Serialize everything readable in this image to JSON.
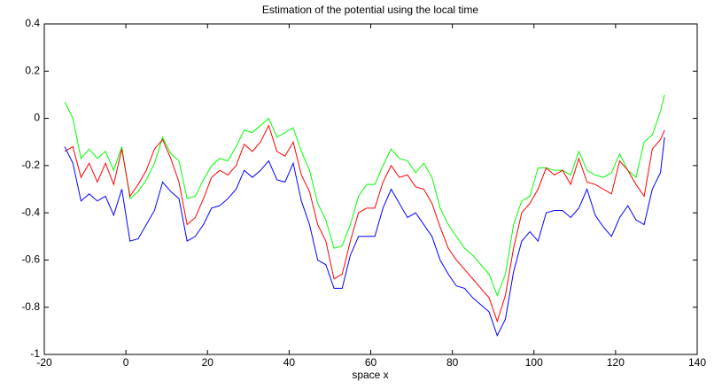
{
  "chart_data": {
    "type": "line",
    "title": "Estimation of the potential using the local time",
    "xlabel": "space x",
    "x": [
      -15,
      -13,
      -11,
      -9,
      -7,
      -5,
      -3,
      -1,
      1,
      3,
      5,
      7,
      9,
      11,
      13,
      15,
      17,
      19,
      21,
      23,
      25,
      27,
      29,
      31,
      33,
      35,
      37,
      39,
      41,
      43,
      45,
      47,
      49,
      51,
      53,
      55,
      57,
      59,
      61,
      63,
      65,
      67,
      69,
      71,
      73,
      75,
      77,
      79,
      81,
      83,
      85,
      87,
      89,
      91,
      93,
      95,
      97,
      99,
      101,
      103,
      105,
      107,
      109,
      111,
      113,
      115,
      117,
      119,
      121,
      123,
      125,
      127,
      129,
      131,
      132
    ],
    "series": [
      {
        "color": "#00ff00",
        "values": [
          0.07,
          0,
          -0.17,
          -0.13,
          -0.17,
          -0.14,
          -0.22,
          -0.12,
          -0.34,
          -0.31,
          -0.26,
          -0.19,
          -0.08,
          -0.15,
          -0.18,
          -0.34,
          -0.33,
          -0.26,
          -0.2,
          -0.17,
          -0.18,
          -0.12,
          -0.05,
          -0.06,
          -0.03,
          0,
          -0.08,
          -0.06,
          -0.04,
          -0.14,
          -0.22,
          -0.36,
          -0.43,
          -0.55,
          -0.54,
          -0.45,
          -0.33,
          -0.28,
          -0.28,
          -0.2,
          -0.13,
          -0.17,
          -0.18,
          -0.23,
          -0.19,
          -0.25,
          -0.38,
          -0.45,
          -0.5,
          -0.55,
          -0.58,
          -0.62,
          -0.66,
          -0.75,
          -0.66,
          -0.45,
          -0.35,
          -0.33,
          -0.21,
          -0.21,
          -0.22,
          -0.22,
          -0.24,
          -0.14,
          -0.22,
          -0.24,
          -0.25,
          -0.23,
          -0.15,
          -0.22,
          -0.25,
          -0.1,
          -0.07,
          0.03,
          0.1
        ]
      },
      {
        "color": "#ff0000",
        "values": [
          -0.14,
          -0.12,
          -0.25,
          -0.19,
          -0.27,
          -0.19,
          -0.28,
          -0.13,
          -0.33,
          -0.28,
          -0.22,
          -0.13,
          -0.09,
          -0.17,
          -0.27,
          -0.45,
          -0.42,
          -0.34,
          -0.25,
          -0.22,
          -0.24,
          -0.2,
          -0.11,
          -0.14,
          -0.1,
          -0.03,
          -0.14,
          -0.16,
          -0.1,
          -0.24,
          -0.31,
          -0.45,
          -0.52,
          -0.68,
          -0.66,
          -0.52,
          -0.4,
          -0.38,
          -0.38,
          -0.27,
          -0.2,
          -0.25,
          -0.24,
          -0.29,
          -0.3,
          -0.36,
          -0.46,
          -0.55,
          -0.6,
          -0.64,
          -0.68,
          -0.72,
          -0.76,
          -0.86,
          -0.75,
          -0.55,
          -0.4,
          -0.36,
          -0.3,
          -0.21,
          -0.24,
          -0.22,
          -0.28,
          -0.17,
          -0.27,
          -0.28,
          -0.3,
          -0.32,
          -0.18,
          -0.22,
          -0.28,
          -0.33,
          -0.13,
          -0.09,
          -0.05
        ]
      },
      {
        "color": "#0000ff",
        "values": [
          -0.12,
          -0.19,
          -0.35,
          -0.32,
          -0.35,
          -0.33,
          -0.41,
          -0.3,
          -0.52,
          -0.51,
          -0.45,
          -0.39,
          -0.27,
          -0.31,
          -0.34,
          -0.52,
          -0.5,
          -0.45,
          -0.38,
          -0.37,
          -0.34,
          -0.3,
          -0.22,
          -0.25,
          -0.22,
          -0.18,
          -0.26,
          -0.27,
          -0.19,
          -0.35,
          -0.45,
          -0.6,
          -0.62,
          -0.72,
          -0.72,
          -0.58,
          -0.5,
          -0.5,
          -0.5,
          -0.38,
          -0.3,
          -0.36,
          -0.42,
          -0.4,
          -0.45,
          -0.5,
          -0.6,
          -0.66,
          -0.71,
          -0.72,
          -0.76,
          -0.79,
          -0.82,
          -0.92,
          -0.85,
          -0.65,
          -0.52,
          -0.48,
          -0.52,
          -0.4,
          -0.39,
          -0.39,
          -0.42,
          -0.38,
          -0.3,
          -0.41,
          -0.46,
          -0.5,
          -0.42,
          -0.37,
          -0.43,
          -0.45,
          -0.3,
          -0.23,
          -0.08
        ]
      }
    ],
    "xlim": [
      -20,
      140
    ],
    "xticks": [
      -20,
      0,
      20,
      40,
      60,
      80,
      100,
      120,
      140
    ],
    "ylim": [
      -1,
      0.4
    ],
    "yticks": [
      -1,
      -0.8,
      -0.6,
      -0.4,
      -0.2,
      0,
      0.2,
      0.4
    ]
  }
}
